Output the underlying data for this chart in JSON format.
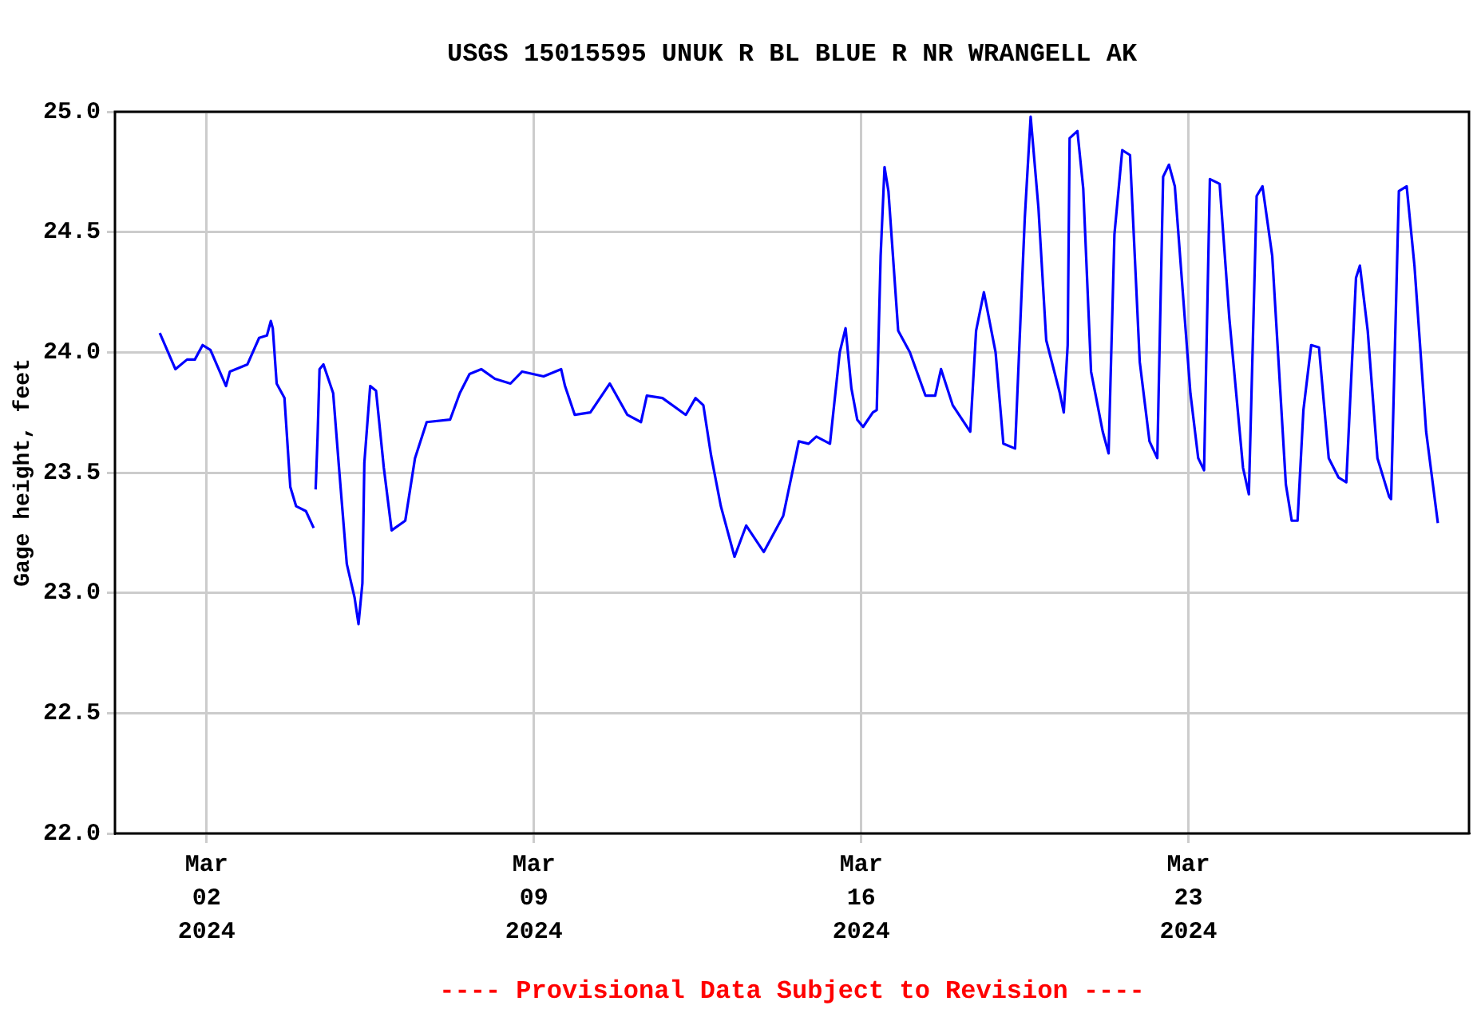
{
  "chart_data": {
    "type": "line",
    "title": "USGS 15015595 UNUK R BL BLUE R NR WRANGELL AK",
    "ylabel": "Gage height, feet",
    "annotations": [
      "---- Provisional Data Subject to Revision ----"
    ],
    "x": [
      "2024-03-01T00:00",
      "2024-03-01T08:00",
      "2024-03-01T14:00",
      "2024-03-01T18:00",
      "2024-03-01T22:00",
      "2024-03-02T02:00",
      "2024-03-02T10:00",
      "2024-03-02T12:00",
      "2024-03-02T21:00",
      "2024-03-03T03:00",
      "2024-03-03T07:00",
      "2024-03-03T09:00",
      "2024-03-03T10:00",
      "2024-03-03T12:00",
      "2024-03-03T16:00",
      "2024-03-03T19:00",
      "2024-03-03T22:00",
      "2024-03-04T03:00",
      "2024-03-04T07:00",
      "2024-03-04T07:30",
      "2024-03-04T08:00",
      "2024-03-04T09:00",
      "2024-03-04T10:00",
      "2024-03-04T12:00",
      "2024-03-04T17:00",
      "2024-03-04T20:00",
      "2024-03-05T00:00",
      "2024-03-05T04:00",
      "2024-03-05T06:00",
      "2024-03-05T08:00",
      "2024-03-05T09:00",
      "2024-03-05T12:00",
      "2024-03-05T15:00",
      "2024-03-05T19:00",
      "2024-03-05T23:00",
      "2024-03-06T06:00",
      "2024-03-06T11:00",
      "2024-03-06T17:00",
      "2024-03-07T05:00",
      "2024-03-07T10:00",
      "2024-03-07T15:00",
      "2024-03-07T21:00",
      "2024-03-08T04:00",
      "2024-03-08T12:00",
      "2024-03-08T18:00",
      "2024-03-09T05:00",
      "2024-03-09T14:00",
      "2024-03-09T16:00",
      "2024-03-09T21:00",
      "2024-03-10T05:00",
      "2024-03-10T15:00",
      "2024-03-11T00:00",
      "2024-03-11T07:00",
      "2024-03-11T10:00",
      "2024-03-11T18:00",
      "2024-03-12T06:00",
      "2024-03-12T11:00",
      "2024-03-12T15:00",
      "2024-03-12T19:00",
      "2024-03-13T00:00",
      "2024-03-13T07:00",
      "2024-03-13T13:00",
      "2024-03-13T22:00",
      "2024-03-14T08:00",
      "2024-03-14T16:00",
      "2024-03-14T21:00",
      "2024-03-15T01:00",
      "2024-03-15T08:00",
      "2024-03-15T13:00",
      "2024-03-15T16:00",
      "2024-03-15T19:00",
      "2024-03-15T22:00",
      "2024-03-16T01:00",
      "2024-03-16T06:00",
      "2024-03-16T08:00",
      "2024-03-16T10:00",
      "2024-03-16T12:00",
      "2024-03-16T14:00",
      "2024-03-16T19:00",
      "2024-03-17T01:00",
      "2024-03-17T09:00",
      "2024-03-17T14:00",
      "2024-03-17T17:00",
      "2024-03-17T23:00",
      "2024-03-18T08:00",
      "2024-03-18T11:00",
      "2024-03-18T15:00",
      "2024-03-18T21:00",
      "2024-03-19T01:00",
      "2024-03-19T07:00",
      "2024-03-19T10:00",
      "2024-03-19T12:00",
      "2024-03-19T15:00",
      "2024-03-19T19:00",
      "2024-03-19T23:00",
      "2024-03-20T06:00",
      "2024-03-20T08:00",
      "2024-03-20T10:00",
      "2024-03-20T11:00",
      "2024-03-20T15:00",
      "2024-03-20T18:00",
      "2024-03-20T22:00",
      "2024-03-21T04:00",
      "2024-03-21T07:00",
      "2024-03-21T10:00",
      "2024-03-21T14:00",
      "2024-03-21T18:00",
      "2024-03-21T23:00",
      "2024-03-22T04:00",
      "2024-03-22T08:00",
      "2024-03-22T11:00",
      "2024-03-22T14:00",
      "2024-03-22T17:00",
      "2024-03-23T01:00",
      "2024-03-23T05:00",
      "2024-03-23T08:00",
      "2024-03-23T11:00",
      "2024-03-23T16:00",
      "2024-03-23T21:00",
      "2024-03-24T04:00",
      "2024-03-24T07:00",
      "2024-03-24T11:00",
      "2024-03-24T14:00",
      "2024-03-24T19:00",
      "2024-03-25T02:00",
      "2024-03-25T05:00",
      "2024-03-25T08:00",
      "2024-03-25T11:00",
      "2024-03-25T15:00",
      "2024-03-25T19:00",
      "2024-03-26T00:00",
      "2024-03-26T05:00",
      "2024-03-26T09:00",
      "2024-03-26T14:00",
      "2024-03-26T16:00",
      "2024-03-26T20:00",
      "2024-03-27T01:00",
      "2024-03-27T07:00",
      "2024-03-27T08:00",
      "2024-03-27T12:00",
      "2024-03-27T16:00",
      "2024-03-27T20:00",
      "2024-03-28T02:00",
      "2024-03-28T08:00"
    ],
    "series": [
      {
        "color": "#0000ff",
        "values": [
          24.08,
          23.93,
          23.97,
          23.97,
          24.03,
          24.01,
          23.86,
          23.92,
          23.95,
          24.06,
          24.07,
          24.13,
          24.1,
          23.87,
          23.81,
          23.44,
          23.36,
          23.34,
          23.27,
          null,
          23.43,
          23.65,
          23.93,
          23.95,
          23.83,
          23.52,
          23.12,
          22.98,
          22.87,
          23.04,
          23.54,
          23.86,
          23.84,
          23.52,
          23.26,
          23.3,
          23.56,
          23.71,
          23.72,
          23.83,
          23.91,
          23.93,
          23.89,
          23.87,
          23.92,
          23.9,
          23.93,
          23.86,
          23.74,
          23.75,
          23.87,
          23.74,
          23.71,
          23.82,
          23.81,
          23.74,
          23.81,
          23.78,
          23.57,
          23.36,
          23.15,
          23.28,
          23.17,
          23.32,
          23.63,
          23.62,
          23.65,
          23.62,
          24.0,
          24.1,
          23.85,
          23.72,
          23.69,
          23.75,
          23.76,
          24.4,
          24.77,
          24.67,
          24.09,
          24.0,
          23.82,
          23.82,
          23.93,
          23.78,
          23.67,
          24.09,
          24.25,
          24.0,
          23.62,
          23.6,
          24.18,
          24.56,
          24.98,
          24.6,
          24.05,
          23.83,
          23.75,
          24.03,
          24.89,
          24.92,
          24.68,
          23.92,
          23.67,
          23.58,
          24.49,
          24.84,
          24.82,
          23.96,
          23.63,
          23.56,
          24.73,
          24.78,
          24.69,
          23.83,
          23.56,
          23.51,
          24.72,
          24.7,
          24.14,
          23.52,
          23.41,
          24.65,
          24.69,
          24.4,
          23.45,
          23.3,
          23.3,
          23.76,
          24.03,
          24.02,
          23.56,
          23.48,
          23.46,
          24.31,
          24.36,
          24.09,
          23.56,
          23.4,
          23.39,
          24.67,
          24.69,
          24.36,
          23.67,
          23.29
        ]
      }
    ],
    "xlim": [
      "2024-02-29T01:00",
      "2024-03-29T00:00"
    ],
    "xticks": [
      {
        "value": "2024-03-02",
        "label": "Mar 02 2024"
      },
      {
        "value": "2024-03-09",
        "label": "Mar 09 2024"
      },
      {
        "value": "2024-03-16",
        "label": "Mar 16 2024"
      },
      {
        "value": "2024-03-23",
        "label": "Mar 23 2024"
      }
    ],
    "ylim": [
      22,
      25
    ],
    "yticks": [
      {
        "value": 22,
        "label": "22.0"
      },
      {
        "value": 22.5,
        "label": "22.5"
      },
      {
        "value": 23,
        "label": "23.0"
      },
      {
        "value": 23.5,
        "label": "23.5"
      },
      {
        "value": 24,
        "label": "24.0"
      },
      {
        "value": 24.5,
        "label": "24.5"
      },
      {
        "value": 25,
        "label": "25.0"
      }
    ],
    "grid": true,
    "marker": "none"
  }
}
